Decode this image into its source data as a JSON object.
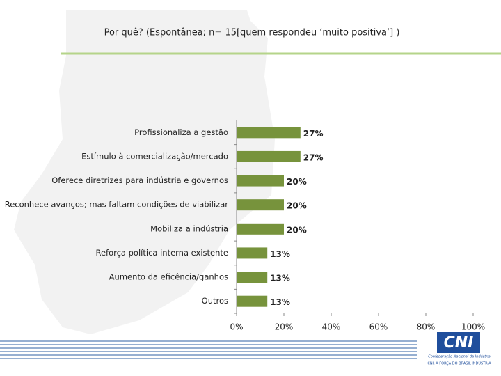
{
  "chart_data": {
    "type": "bar",
    "orientation": "horizontal",
    "title": "Por quê? (Espontânea; n= 15[quem respondeu ‘muito positiva’] )",
    "categories": [
      "Profissionaliza a gestão",
      "Estímulo à comercialização/mercado",
      "Oferece diretrizes para indústria e governos",
      "Reconhece avanços; mas faltam condições de viabilizar",
      "Mobiliza a indústria",
      "Reforça política interna existente",
      "Aumento da eficência/ganhos",
      "Outros"
    ],
    "values": [
      27,
      27,
      20,
      20,
      20,
      13,
      13,
      13
    ],
    "value_labels": [
      "27%",
      "27%",
      "20%",
      "20%",
      "20%",
      "13%",
      "13%",
      "13%"
    ],
    "color": "#77933c",
    "xlim": [
      0,
      100
    ],
    "xticks": [
      {
        "value": 0,
        "label": "0%"
      },
      {
        "value": 20,
        "label": "20%"
      },
      {
        "value": 40,
        "label": "40%"
      },
      {
        "value": 60,
        "label": "60%"
      },
      {
        "value": 80,
        "label": "80%"
      },
      {
        "value": 100,
        "label": "100%"
      }
    ],
    "grid": false
  },
  "logo": {
    "name": "CNI",
    "subtitle": "Confederação Nacional da Indústria",
    "tagline": "CNI. A FORÇA DO BRASIL INDÚSTRIA"
  }
}
